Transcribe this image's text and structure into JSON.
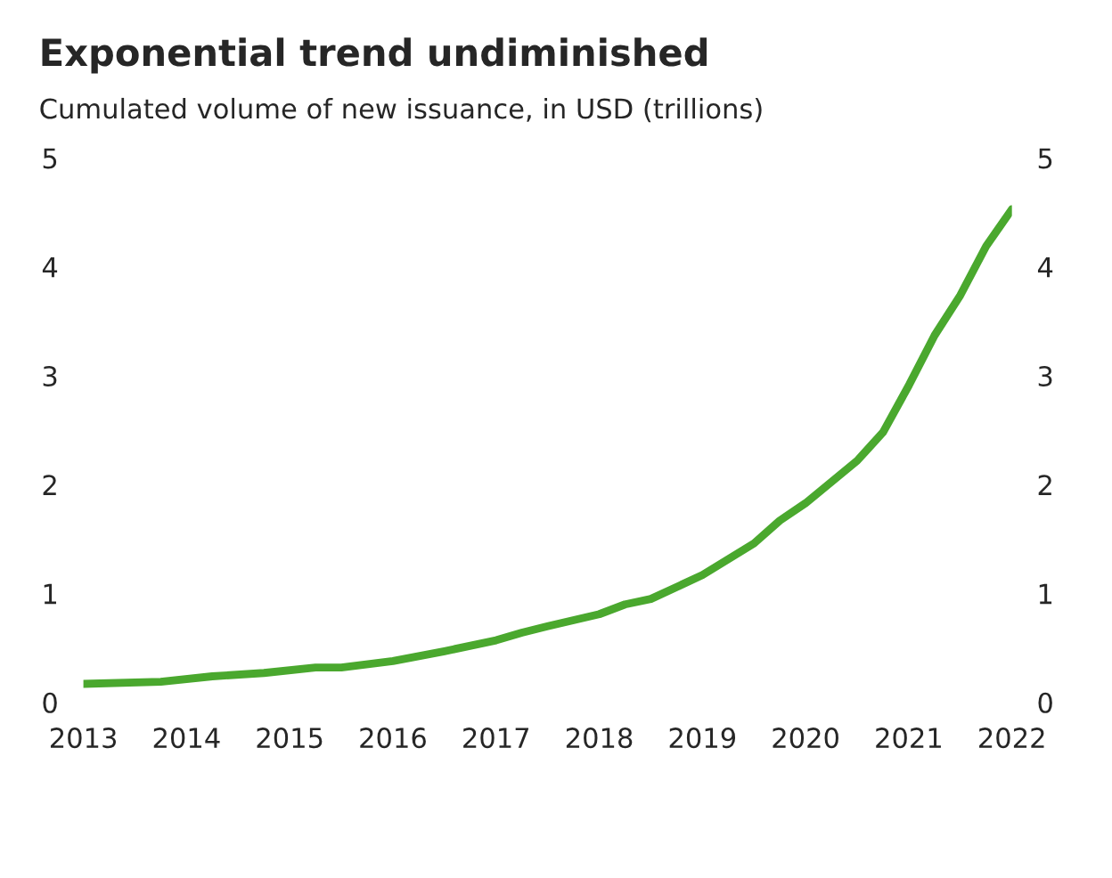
{
  "chart_data": {
    "type": "line",
    "title": "Exponential trend undiminished",
    "subtitle": "Cumulated volume of new issuance, in USD (trillions)",
    "x": [
      2013.0,
      2013.75,
      2014.25,
      2014.75,
      2015.25,
      2015.5,
      2016.0,
      2016.5,
      2017.0,
      2017.25,
      2017.5,
      2018.0,
      2018.25,
      2018.5,
      2019.0,
      2019.5,
      2019.75,
      2020.0,
      2020.5,
      2020.75,
      2021.0,
      2021.25,
      2021.5,
      2021.75,
      2022.0
    ],
    "series": [
      {
        "color": "#4aa82e",
        "values": [
          0.17,
          0.19,
          0.24,
          0.27,
          0.32,
          0.32,
          0.38,
          0.47,
          0.57,
          0.64,
          0.7,
          0.81,
          0.9,
          0.95,
          1.17,
          1.46,
          1.67,
          1.83,
          2.22,
          2.48,
          2.91,
          3.37,
          3.74,
          4.19,
          4.53
        ]
      }
    ],
    "xlim": [
      2013,
      2022
    ],
    "xticks": [
      2013,
      2014,
      2015,
      2016,
      2017,
      2018,
      2019,
      2020,
      2021,
      2022
    ],
    "ylim": [
      0,
      5
    ],
    "yticks": [
      0,
      1,
      2,
      3,
      4,
      5
    ],
    "y2lim": [
      0,
      5
    ],
    "y2ticks": [
      0,
      1,
      2,
      3,
      4,
      5
    ],
    "grid": false,
    "legend": false,
    "marker": "none",
    "line_style": "solid"
  }
}
